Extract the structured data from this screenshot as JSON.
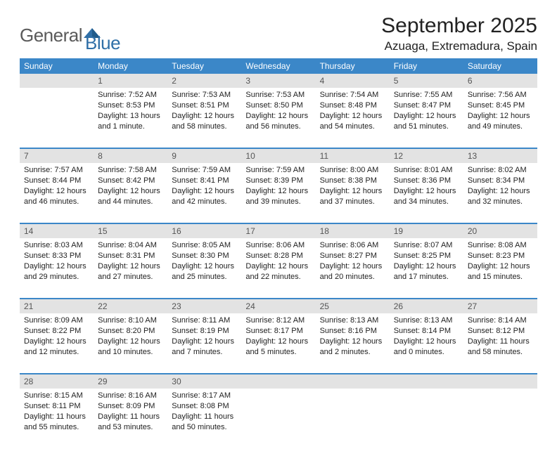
{
  "logo": {
    "text1": "General",
    "text2": "Blue"
  },
  "title": "September 2025",
  "location": "Azuaga, Extremadura, Spain",
  "colors": {
    "header_bg": "#3b87c8",
    "header_text": "#ffffff",
    "daynum_bg": "#e3e3e3",
    "daynum_text": "#555555",
    "body_text": "#222222",
    "divider": "#3b87c8",
    "logo_gray": "#5a5a5a",
    "logo_blue": "#2f6fa7",
    "page_bg": "#ffffff"
  },
  "typography": {
    "title_fontsize": 30,
    "location_fontsize": 17,
    "header_fontsize": 12,
    "daynum_fontsize": 12,
    "cell_fontsize": 11,
    "logo_fontsize": 26
  },
  "weekdays": [
    "Sunday",
    "Monday",
    "Tuesday",
    "Wednesday",
    "Thursday",
    "Friday",
    "Saturday"
  ],
  "weeks": [
    [
      null,
      {
        "n": "1",
        "sr": "Sunrise: 7:52 AM",
        "ss": "Sunset: 8:53 PM",
        "dl": "Daylight: 13 hours and 1 minute."
      },
      {
        "n": "2",
        "sr": "Sunrise: 7:53 AM",
        "ss": "Sunset: 8:51 PM",
        "dl": "Daylight: 12 hours and 58 minutes."
      },
      {
        "n": "3",
        "sr": "Sunrise: 7:53 AM",
        "ss": "Sunset: 8:50 PM",
        "dl": "Daylight: 12 hours and 56 minutes."
      },
      {
        "n": "4",
        "sr": "Sunrise: 7:54 AM",
        "ss": "Sunset: 8:48 PM",
        "dl": "Daylight: 12 hours and 54 minutes."
      },
      {
        "n": "5",
        "sr": "Sunrise: 7:55 AM",
        "ss": "Sunset: 8:47 PM",
        "dl": "Daylight: 12 hours and 51 minutes."
      },
      {
        "n": "6",
        "sr": "Sunrise: 7:56 AM",
        "ss": "Sunset: 8:45 PM",
        "dl": "Daylight: 12 hours and 49 minutes."
      }
    ],
    [
      {
        "n": "7",
        "sr": "Sunrise: 7:57 AM",
        "ss": "Sunset: 8:44 PM",
        "dl": "Daylight: 12 hours and 46 minutes."
      },
      {
        "n": "8",
        "sr": "Sunrise: 7:58 AM",
        "ss": "Sunset: 8:42 PM",
        "dl": "Daylight: 12 hours and 44 minutes."
      },
      {
        "n": "9",
        "sr": "Sunrise: 7:59 AM",
        "ss": "Sunset: 8:41 PM",
        "dl": "Daylight: 12 hours and 42 minutes."
      },
      {
        "n": "10",
        "sr": "Sunrise: 7:59 AM",
        "ss": "Sunset: 8:39 PM",
        "dl": "Daylight: 12 hours and 39 minutes."
      },
      {
        "n": "11",
        "sr": "Sunrise: 8:00 AM",
        "ss": "Sunset: 8:38 PM",
        "dl": "Daylight: 12 hours and 37 minutes."
      },
      {
        "n": "12",
        "sr": "Sunrise: 8:01 AM",
        "ss": "Sunset: 8:36 PM",
        "dl": "Daylight: 12 hours and 34 minutes."
      },
      {
        "n": "13",
        "sr": "Sunrise: 8:02 AM",
        "ss": "Sunset: 8:34 PM",
        "dl": "Daylight: 12 hours and 32 minutes."
      }
    ],
    [
      {
        "n": "14",
        "sr": "Sunrise: 8:03 AM",
        "ss": "Sunset: 8:33 PM",
        "dl": "Daylight: 12 hours and 29 minutes."
      },
      {
        "n": "15",
        "sr": "Sunrise: 8:04 AM",
        "ss": "Sunset: 8:31 PM",
        "dl": "Daylight: 12 hours and 27 minutes."
      },
      {
        "n": "16",
        "sr": "Sunrise: 8:05 AM",
        "ss": "Sunset: 8:30 PM",
        "dl": "Daylight: 12 hours and 25 minutes."
      },
      {
        "n": "17",
        "sr": "Sunrise: 8:06 AM",
        "ss": "Sunset: 8:28 PM",
        "dl": "Daylight: 12 hours and 22 minutes."
      },
      {
        "n": "18",
        "sr": "Sunrise: 8:06 AM",
        "ss": "Sunset: 8:27 PM",
        "dl": "Daylight: 12 hours and 20 minutes."
      },
      {
        "n": "19",
        "sr": "Sunrise: 8:07 AM",
        "ss": "Sunset: 8:25 PM",
        "dl": "Daylight: 12 hours and 17 minutes."
      },
      {
        "n": "20",
        "sr": "Sunrise: 8:08 AM",
        "ss": "Sunset: 8:23 PM",
        "dl": "Daylight: 12 hours and 15 minutes."
      }
    ],
    [
      {
        "n": "21",
        "sr": "Sunrise: 8:09 AM",
        "ss": "Sunset: 8:22 PM",
        "dl": "Daylight: 12 hours and 12 minutes."
      },
      {
        "n": "22",
        "sr": "Sunrise: 8:10 AM",
        "ss": "Sunset: 8:20 PM",
        "dl": "Daylight: 12 hours and 10 minutes."
      },
      {
        "n": "23",
        "sr": "Sunrise: 8:11 AM",
        "ss": "Sunset: 8:19 PM",
        "dl": "Daylight: 12 hours and 7 minutes."
      },
      {
        "n": "24",
        "sr": "Sunrise: 8:12 AM",
        "ss": "Sunset: 8:17 PM",
        "dl": "Daylight: 12 hours and 5 minutes."
      },
      {
        "n": "25",
        "sr": "Sunrise: 8:13 AM",
        "ss": "Sunset: 8:16 PM",
        "dl": "Daylight: 12 hours and 2 minutes."
      },
      {
        "n": "26",
        "sr": "Sunrise: 8:13 AM",
        "ss": "Sunset: 8:14 PM",
        "dl": "Daylight: 12 hours and 0 minutes."
      },
      {
        "n": "27",
        "sr": "Sunrise: 8:14 AM",
        "ss": "Sunset: 8:12 PM",
        "dl": "Daylight: 11 hours and 58 minutes."
      }
    ],
    [
      {
        "n": "28",
        "sr": "Sunrise: 8:15 AM",
        "ss": "Sunset: 8:11 PM",
        "dl": "Daylight: 11 hours and 55 minutes."
      },
      {
        "n": "29",
        "sr": "Sunrise: 8:16 AM",
        "ss": "Sunset: 8:09 PM",
        "dl": "Daylight: 11 hours and 53 minutes."
      },
      {
        "n": "30",
        "sr": "Sunrise: 8:17 AM",
        "ss": "Sunset: 8:08 PM",
        "dl": "Daylight: 11 hours and 50 minutes."
      },
      null,
      null,
      null,
      null
    ]
  ]
}
